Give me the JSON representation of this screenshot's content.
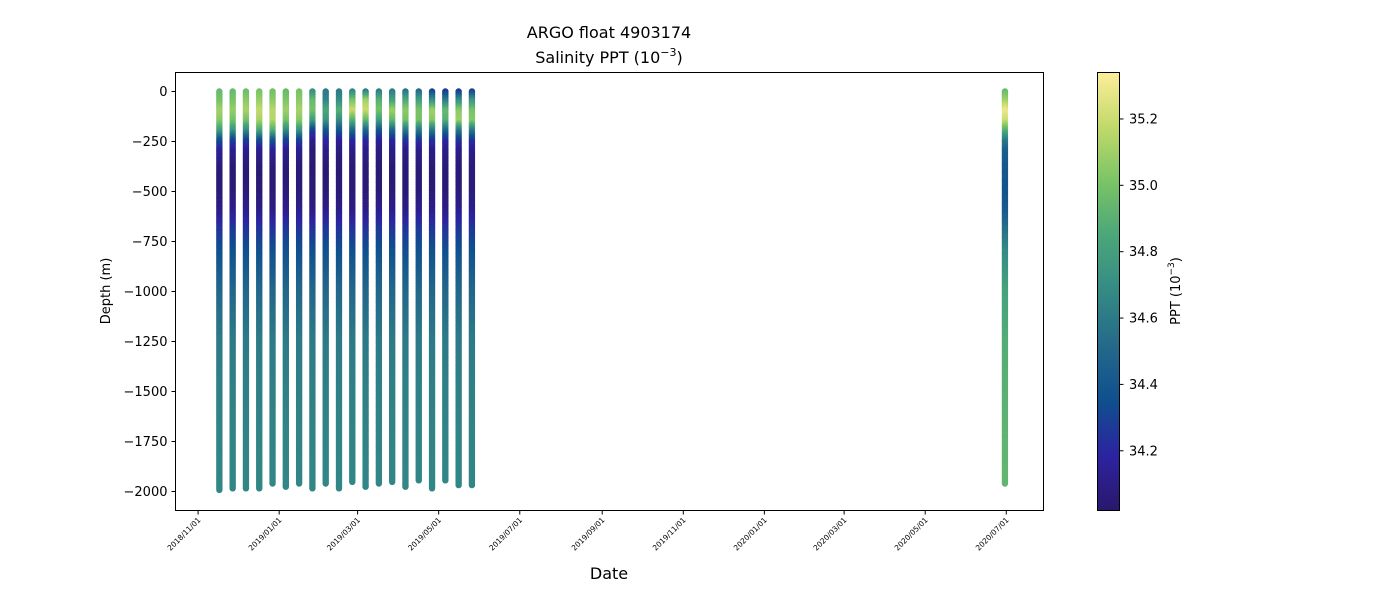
{
  "chart_data": {
    "type": "scatter",
    "title": "ARGO float 4903174",
    "subtitle_base": "Salinity PPT (10",
    "subtitle_exp": "−3",
    "subtitle_end": ")",
    "xlabel": "Date",
    "ylabel": "Depth (m)",
    "xlim": [
      "2018-10-15",
      "2020-07-29"
    ],
    "ylim": [
      -2095,
      95
    ],
    "x_ticks": [
      "2018/11/01",
      "2019/01/01",
      "2019/03/01",
      "2019/05/01",
      "2019/07/01",
      "2019/09/01",
      "2019/11/01",
      "2020/01/01",
      "2020/03/01",
      "2020/05/01",
      "2020/07/01"
    ],
    "y_ticks": [
      0,
      -250,
      -500,
      -750,
      -1000,
      -1250,
      -1500,
      -1750,
      -2000
    ],
    "y_tick_labels": [
      "0",
      "−250",
      "−500",
      "−750",
      "−1000",
      "−1250",
      "−1500",
      "−1750",
      "−2000"
    ],
    "grid": false,
    "colorbar": {
      "label_base": "PPT (10",
      "label_exp": "−3",
      "label_end": ")",
      "range": [
        34.02,
        35.34
      ],
      "ticks": [
        34.2,
        34.4,
        34.6,
        34.8,
        35.0,
        35.2
      ],
      "tick_labels": [
        "34.2",
        "34.4",
        "34.6",
        "34.8",
        "35.0",
        "35.2"
      ],
      "colormap": [
        "#2a186c",
        "#2c23a0",
        "#0f4f8e",
        "#24698a",
        "#348a85",
        "#4aa67a",
        "#79c466",
        "#c1d96a",
        "#fdee99"
      ]
    },
    "depth_levels": [
      0,
      50,
      100,
      150,
      200,
      250,
      300,
      400,
      500,
      600,
      700,
      800,
      1000,
      1250,
      1500,
      1750,
      2000
    ],
    "profiles": [
      {
        "date": "2018-11-17",
        "max_depth": 1995,
        "salinity": [
          34.95,
          35.0,
          35.1,
          35.05,
          34.8,
          34.35,
          34.15,
          34.05,
          34.05,
          34.1,
          34.25,
          34.35,
          34.5,
          34.6,
          34.63,
          34.65,
          34.66
        ]
      },
      {
        "date": "2018-11-27",
        "max_depth": 1990,
        "salinity": [
          34.95,
          35.0,
          35.08,
          35.0,
          34.75,
          34.3,
          34.12,
          34.04,
          34.05,
          34.12,
          34.27,
          34.36,
          34.5,
          34.6,
          34.63,
          34.65,
          34.66
        ]
      },
      {
        "date": "2018-12-07",
        "max_depth": 1990,
        "salinity": [
          34.97,
          35.05,
          35.12,
          35.0,
          34.7,
          34.3,
          34.12,
          34.05,
          34.06,
          34.12,
          34.25,
          34.35,
          34.5,
          34.6,
          34.63,
          34.65,
          34.66
        ]
      },
      {
        "date": "2018-12-17",
        "max_depth": 1990,
        "salinity": [
          35.0,
          35.08,
          35.18,
          35.12,
          34.85,
          34.35,
          34.12,
          34.04,
          34.05,
          34.1,
          34.25,
          34.35,
          34.5,
          34.6,
          34.63,
          34.65,
          34.66
        ]
      },
      {
        "date": "2018-12-27",
        "max_depth": 1965,
        "salinity": [
          34.98,
          35.05,
          35.15,
          35.15,
          34.9,
          34.4,
          34.15,
          34.05,
          34.05,
          34.1,
          34.25,
          34.35,
          34.5,
          34.6,
          34.63,
          34.65,
          34.66
        ]
      },
      {
        "date": "2019-01-06",
        "max_depth": 1980,
        "salinity": [
          34.95,
          35.02,
          35.1,
          35.0,
          34.7,
          34.3,
          34.12,
          34.05,
          34.06,
          34.12,
          34.27,
          34.36,
          34.5,
          34.6,
          34.63,
          34.65,
          34.66
        ]
      },
      {
        "date": "2019-01-16",
        "max_depth": 1960,
        "salinity": [
          35.0,
          35.05,
          35.12,
          35.05,
          34.75,
          34.3,
          34.12,
          34.05,
          34.06,
          34.12,
          34.25,
          34.35,
          34.5,
          34.6,
          34.63,
          34.65,
          34.66
        ]
      },
      {
        "date": "2019-01-26",
        "max_depth": 1985,
        "salinity": [
          34.7,
          34.95,
          35.0,
          34.8,
          34.3,
          34.12,
          34.05,
          34.04,
          34.05,
          34.1,
          34.25,
          34.35,
          34.5,
          34.6,
          34.63,
          34.65,
          34.66
        ]
      },
      {
        "date": "2019-02-05",
        "max_depth": 1965,
        "salinity": [
          34.6,
          34.65,
          34.85,
          34.75,
          34.4,
          34.2,
          34.1,
          34.04,
          34.05,
          34.12,
          34.27,
          34.36,
          34.5,
          34.6,
          34.63,
          34.65,
          34.66
        ]
      },
      {
        "date": "2019-02-15",
        "max_depth": 1985,
        "salinity": [
          34.6,
          34.7,
          34.9,
          34.7,
          34.4,
          34.15,
          34.08,
          34.04,
          34.05,
          34.1,
          34.25,
          34.35,
          34.5,
          34.6,
          34.63,
          34.65,
          34.66
        ]
      },
      {
        "date": "2019-02-25",
        "max_depth": 1955,
        "salinity": [
          34.65,
          35.0,
          35.2,
          34.9,
          34.5,
          34.2,
          34.1,
          34.05,
          34.05,
          34.1,
          34.25,
          34.35,
          34.5,
          34.6,
          34.63,
          34.65,
          34.66
        ]
      },
      {
        "date": "2019-03-07",
        "max_depth": 1980,
        "salinity": [
          34.6,
          35.1,
          35.2,
          34.95,
          34.5,
          34.2,
          34.1,
          34.05,
          34.05,
          34.1,
          34.25,
          34.35,
          34.5,
          34.6,
          34.63,
          34.65,
          34.66
        ]
      },
      {
        "date": "2019-03-17",
        "max_depth": 1960,
        "salinity": [
          34.6,
          34.9,
          35.0,
          34.8,
          34.4,
          34.15,
          34.08,
          34.04,
          34.05,
          34.12,
          34.27,
          34.36,
          34.5,
          34.6,
          34.63,
          34.65,
          34.66
        ]
      },
      {
        "date": "2019-03-27",
        "max_depth": 1955,
        "salinity": [
          34.6,
          34.8,
          35.1,
          34.95,
          34.5,
          34.2,
          34.1,
          34.05,
          34.06,
          34.12,
          34.26,
          34.36,
          34.5,
          34.6,
          34.63,
          34.65,
          34.66
        ]
      },
      {
        "date": "2019-04-06",
        "max_depth": 1980,
        "salinity": [
          34.55,
          34.85,
          35.05,
          35.0,
          34.6,
          34.25,
          34.1,
          34.05,
          34.05,
          34.1,
          34.25,
          34.35,
          34.5,
          34.6,
          34.63,
          34.65,
          34.66
        ]
      },
      {
        "date": "2019-04-16",
        "max_depth": 1950,
        "salinity": [
          34.5,
          34.8,
          35.0,
          35.0,
          34.6,
          34.25,
          34.1,
          34.05,
          34.06,
          34.12,
          34.27,
          34.36,
          34.5,
          34.6,
          34.63,
          34.65,
          34.66
        ]
      },
      {
        "date": "2019-04-26",
        "max_depth": 1985,
        "salinity": [
          34.3,
          34.7,
          35.1,
          35.05,
          34.6,
          34.25,
          34.1,
          34.05,
          34.06,
          34.12,
          34.26,
          34.36,
          34.5,
          34.6,
          34.63,
          34.65,
          34.66
        ]
      },
      {
        "date": "2019-05-06",
        "max_depth": 1945,
        "salinity": [
          34.25,
          34.6,
          34.95,
          34.9,
          34.5,
          34.2,
          34.1,
          34.05,
          34.05,
          34.1,
          34.25,
          34.35,
          34.5,
          34.6,
          34.63,
          34.65,
          34.66
        ]
      },
      {
        "date": "2019-05-16",
        "max_depth": 1975,
        "salinity": [
          34.25,
          34.7,
          35.05,
          35.1,
          34.6,
          34.25,
          34.1,
          34.05,
          34.06,
          34.12,
          34.26,
          34.36,
          34.5,
          34.6,
          34.63,
          34.65,
          34.66
        ]
      },
      {
        "date": "2019-05-26",
        "max_depth": 1975,
        "salinity": [
          34.3,
          34.75,
          35.0,
          35.05,
          34.6,
          34.25,
          34.12,
          34.06,
          34.07,
          34.13,
          34.27,
          34.36,
          34.5,
          34.6,
          34.63,
          34.65,
          34.66
        ]
      },
      {
        "date": "2020-06-30",
        "max_depth": 1960,
        "salinity": [
          34.95,
          35.1,
          35.3,
          35.2,
          34.9,
          34.6,
          34.45,
          34.4,
          34.38,
          34.42,
          34.55,
          34.68,
          34.82,
          34.88,
          34.9,
          34.92,
          34.93
        ]
      }
    ]
  }
}
